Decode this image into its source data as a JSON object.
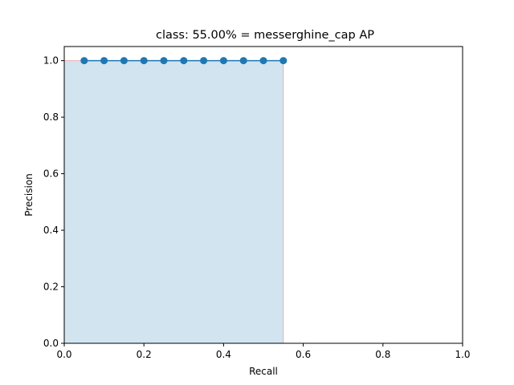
{
  "chart_data": {
    "type": "line",
    "title": "class: 55.00% = messerghine_cap AP",
    "xlabel": "Recall",
    "ylabel": "Precision",
    "xlim": [
      0.0,
      1.0
    ],
    "ylim": [
      0.0,
      1.05
    ],
    "x_ticks": [
      "0.0",
      "0.2",
      "0.4",
      "0.6",
      "0.8",
      "1.0"
    ],
    "y_ticks": [
      "0.0",
      "0.2",
      "0.4",
      "0.6",
      "0.8",
      "1.0"
    ],
    "grid": false,
    "series": [
      {
        "x": [
          0.05,
          0.1,
          0.15,
          0.2,
          0.25,
          0.3,
          0.35,
          0.4,
          0.45,
          0.5,
          0.55
        ],
        "y": [
          1.0,
          1.0,
          1.0,
          1.0,
          1.0,
          1.0,
          1.0,
          1.0,
          1.0,
          1.0,
          1.0
        ],
        "color": "#1f77b4"
      }
    ],
    "area": {
      "x": [
        0.0,
        0.55
      ],
      "y": [
        1.0,
        1.0
      ],
      "fill_color": "#1f77b4",
      "fill_opacity": 0.2,
      "edge_color": "#f08080"
    }
  }
}
